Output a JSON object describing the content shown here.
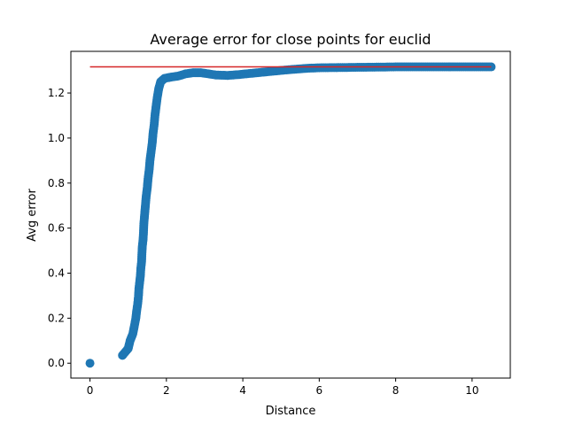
{
  "chart_data": {
    "type": "scatter",
    "title": "Average error for close points for euclid",
    "xlabel": "Distance",
    "ylabel": "Avg error",
    "xlim": [
      -0.5,
      11
    ],
    "ylim": [
      -0.066,
      1.385
    ],
    "xticks": [
      0,
      2,
      4,
      6,
      8,
      10
    ],
    "yticks": [
      0.0,
      0.2,
      0.4,
      0.6,
      0.8,
      1.0,
      1.2
    ],
    "xtick_labels": [
      "0",
      "2",
      "4",
      "6",
      "8",
      "10"
    ],
    "ytick_labels": [
      "0.0",
      "0.2",
      "0.4",
      "0.6",
      "0.8",
      "1.0",
      "1.2"
    ],
    "grid": false,
    "series": [
      {
        "kind": "scatter",
        "color": "#1f77b4",
        "points": [
          [
            0.0,
            0.0
          ],
          [
            0.85,
            0.035
          ],
          [
            1.0,
            0.065
          ],
          [
            1.05,
            0.1
          ],
          [
            1.12,
            0.13
          ],
          [
            1.15,
            0.155
          ],
          [
            1.2,
            0.2
          ],
          [
            1.22,
            0.23
          ],
          [
            1.25,
            0.265
          ],
          [
            1.27,
            0.3
          ],
          [
            1.28,
            0.33
          ],
          [
            1.3,
            0.36
          ],
          [
            1.32,
            0.39
          ],
          [
            1.33,
            0.42
          ],
          [
            1.35,
            0.45
          ],
          [
            1.36,
            0.49
          ],
          [
            1.37,
            0.52
          ],
          [
            1.39,
            0.55
          ],
          [
            1.4,
            0.58
          ],
          [
            1.41,
            0.62
          ],
          [
            1.43,
            0.66
          ],
          [
            1.45,
            0.7
          ],
          [
            1.47,
            0.74
          ],
          [
            1.5,
            0.78
          ],
          [
            1.52,
            0.82
          ],
          [
            1.55,
            0.86
          ],
          [
            1.57,
            0.9
          ],
          [
            1.6,
            0.94
          ],
          [
            1.63,
            0.98
          ],
          [
            1.65,
            1.02
          ],
          [
            1.68,
            1.06
          ],
          [
            1.7,
            1.1
          ],
          [
            1.73,
            1.14
          ],
          [
            1.76,
            1.18
          ],
          [
            1.8,
            1.22
          ],
          [
            1.85,
            1.25
          ],
          [
            1.95,
            1.265
          ],
          [
            2.1,
            1.27
          ],
          [
            2.3,
            1.275
          ],
          [
            2.5,
            1.285
          ],
          [
            2.7,
            1.29
          ],
          [
            2.9,
            1.29
          ],
          [
            3.1,
            1.285
          ],
          [
            3.3,
            1.28
          ],
          [
            3.6,
            1.278
          ],
          [
            3.9,
            1.282
          ],
          [
            4.2,
            1.287
          ],
          [
            4.5,
            1.292
          ],
          [
            4.8,
            1.297
          ],
          [
            5.1,
            1.302
          ],
          [
            5.4,
            1.306
          ],
          [
            5.7,
            1.31
          ],
          [
            6.0,
            1.312
          ],
          [
            6.5,
            1.313
          ],
          [
            7.0,
            1.314
          ],
          [
            7.5,
            1.315
          ],
          [
            8.0,
            1.316
          ],
          [
            8.5,
            1.316
          ],
          [
            9.0,
            1.316
          ],
          [
            9.5,
            1.316
          ],
          [
            10.0,
            1.316
          ],
          [
            10.5,
            1.316
          ]
        ]
      },
      {
        "kind": "line",
        "color": "#d62728",
        "x": [
          0,
          10.5
        ],
        "y": [
          1.316,
          1.316
        ]
      }
    ]
  }
}
